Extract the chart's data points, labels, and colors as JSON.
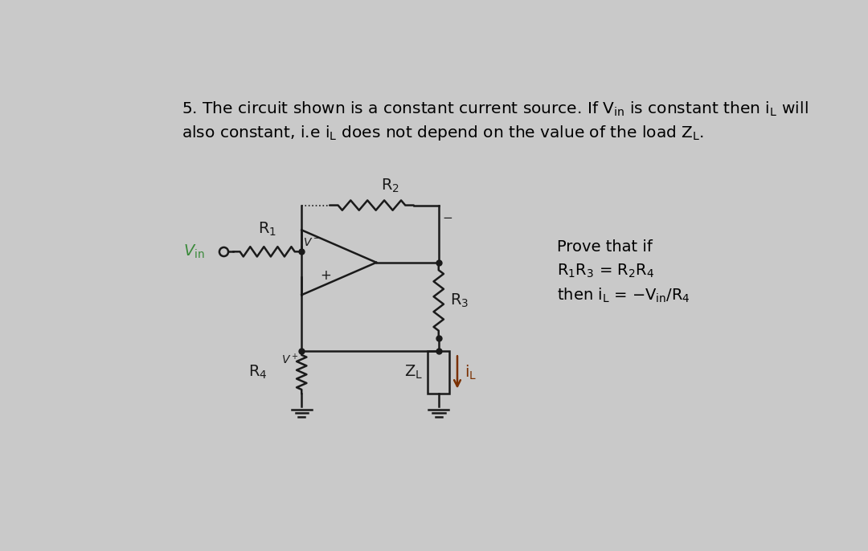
{
  "bg_color": "#c9c9c9",
  "circuit_color": "#1a1a1a",
  "label_color": "#1a1a1a",
  "vin_color": "#3a8a3a",
  "il_color": "#7a3000",
  "figsize": [
    10.8,
    6.86
  ],
  "dpi": 100
}
